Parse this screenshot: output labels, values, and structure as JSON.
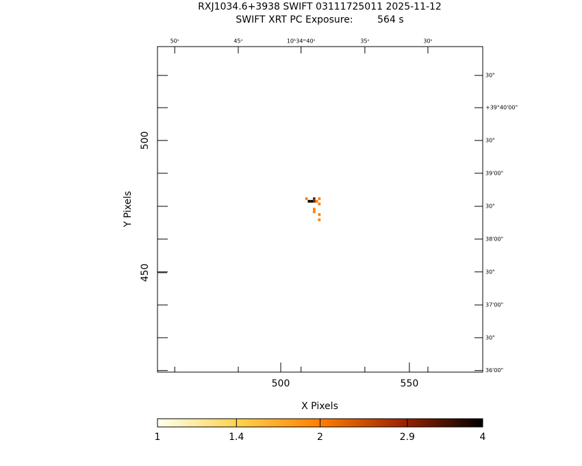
{
  "chart_data": {
    "type": "image",
    "title": "RXJ1034.6+3938 SWIFT 03111725011 2025-11-12",
    "subtitle": "SWIFT XRT PC Exposure:        564 s",
    "xlabel": "X Pixels",
    "ylabel": "Y Pixels",
    "xlim": [
      452.1,
      578.5
    ],
    "ylim": [
      412.4,
      535.5
    ],
    "xticks": [
      500,
      550
    ],
    "yticks": [
      450,
      500
    ],
    "top_ticks": [
      {
        "value": 458.8,
        "label": "50ˢ"
      },
      {
        "value": 483.5,
        "label": "45ˢ"
      },
      {
        "value": 507.9,
        "label": "10ʰ34ᵐ40ˢ"
      },
      {
        "value": 532.7,
        "label": "35ˢ"
      },
      {
        "value": 557.2,
        "label": "30ˢ"
      }
    ],
    "right_ticks": [
      {
        "value": 524.6,
        "label": "30\""
      },
      {
        "value": 512.4,
        "label": "+39°40'00\""
      },
      {
        "value": 500.0,
        "label": "30\""
      },
      {
        "value": 487.6,
        "label": "39'00\""
      },
      {
        "value": 475.1,
        "label": "30\""
      },
      {
        "value": 462.7,
        "label": "38'00\""
      },
      {
        "value": 450.3,
        "label": "30\""
      },
      {
        "value": 437.8,
        "label": "37'00\""
      },
      {
        "value": 425.4,
        "label": "30\""
      },
      {
        "value": 413.0,
        "label": "36'00\""
      }
    ],
    "x": [
      510,
      513,
      515,
      511,
      512,
      513,
      514,
      515,
      513,
      513,
      515,
      515
    ],
    "y": [
      478,
      478,
      478,
      477,
      477,
      477,
      477,
      476,
      474,
      473,
      472,
      470
    ],
    "values": [
      2,
      3,
      2,
      4,
      4,
      3,
      2,
      2,
      2,
      2,
      2,
      2
    ],
    "colorbar": {
      "lim": [
        1,
        4
      ],
      "log": true,
      "ticks": [
        1,
        1.4,
        2,
        2.9,
        4
      ],
      "colors": [
        "#fffff0",
        "#ffd24a",
        "#ff7f00",
        "#a02400",
        "#000000"
      ]
    }
  }
}
